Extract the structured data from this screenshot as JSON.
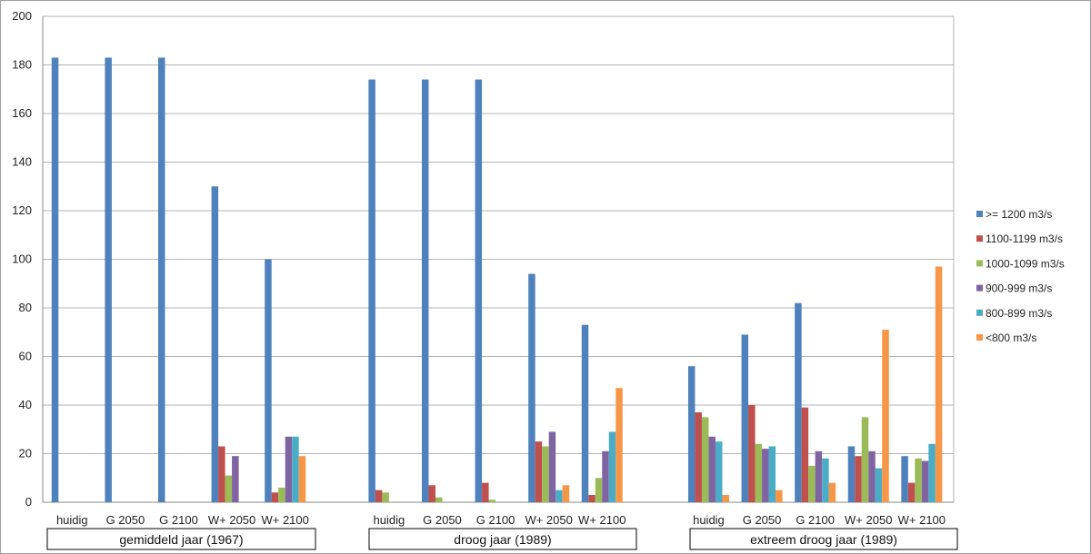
{
  "chart_data": {
    "type": "bar",
    "ylim": [
      0,
      200
    ],
    "yticks": [
      0,
      20,
      40,
      60,
      80,
      100,
      120,
      140,
      160,
      180,
      200
    ],
    "grid": true,
    "legend_position": "right",
    "groups": [
      {
        "label": "gemiddeld jaar (1967)",
        "categories": [
          "huidig",
          "G 2050",
          "G 2100",
          "W+ 2050",
          "W+ 2100"
        ]
      },
      {
        "label": "droog jaar (1989)",
        "categories": [
          "huidig",
          "G 2050",
          "G 2100",
          "W+ 2050",
          "W+ 2100"
        ]
      },
      {
        "label": "extreem droog jaar (1989)",
        "categories": [
          "huidig",
          "G 2050",
          "G 2100",
          "W+ 2050",
          "W+ 2100"
        ]
      }
    ],
    "series": [
      {
        "name": ">= 1200 m3/s",
        "color": "#4F81BD",
        "values": [
          183,
          183,
          183,
          130,
          100,
          174,
          174,
          174,
          94,
          73,
          56,
          69,
          82,
          23,
          19
        ]
      },
      {
        "name": "1100-1199 m3/s",
        "color": "#C0504D",
        "values": [
          0,
          0,
          0,
          23,
          4,
          5,
          7,
          8,
          25,
          3,
          37,
          40,
          39,
          19,
          8
        ]
      },
      {
        "name": "1000-1099 m3/s",
        "color": "#9BBB59",
        "values": [
          0,
          0,
          0,
          11,
          6,
          4,
          2,
          1,
          23,
          10,
          35,
          24,
          15,
          35,
          18
        ]
      },
      {
        "name": "900-999 m3/s",
        "color": "#8064A2",
        "values": [
          0,
          0,
          0,
          19,
          27,
          0,
          0,
          0,
          29,
          21,
          27,
          22,
          21,
          21,
          17
        ]
      },
      {
        "name": "800-899 m3/s",
        "color": "#4BACC6",
        "values": [
          0,
          0,
          0,
          0,
          27,
          0,
          0,
          0,
          5,
          29,
          25,
          23,
          18,
          14,
          24
        ]
      },
      {
        "name": "<800 m3/s",
        "color": "#F79646",
        "values": [
          0,
          0,
          0,
          0,
          19,
          0,
          0,
          0,
          7,
          47,
          3,
          5,
          8,
          71,
          97
        ]
      }
    ]
  }
}
